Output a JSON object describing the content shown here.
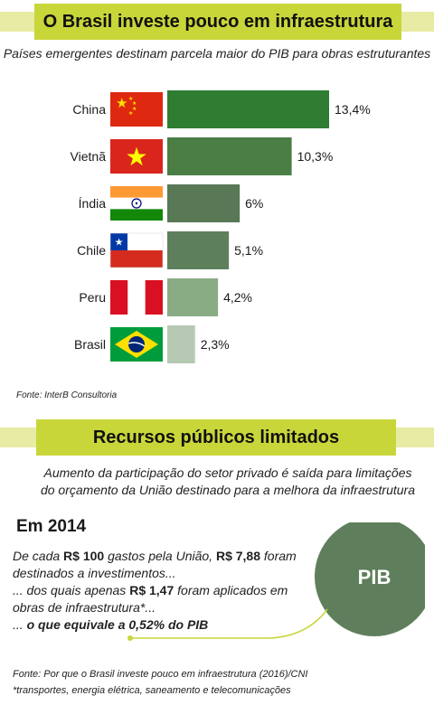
{
  "section1": {
    "title": "O Brasil investe pouco em infraestrutura",
    "subtitle": "Países emergentes destinam parcela maior do PIB para obras estruturantes",
    "source": "Fonte: InterB Consultoria"
  },
  "chart_data": {
    "type": "bar",
    "orientation": "horizontal",
    "categories": [
      "China",
      "Vietnã",
      "Índia",
      "Chile",
      "Peru",
      "Brasil"
    ],
    "values": [
      13.4,
      10.3,
      6,
      5.1,
      4.2,
      2.3
    ],
    "value_labels": [
      "13,4%",
      "10,3%",
      "6%",
      "5,1%",
      "4,2%",
      "2,3%"
    ],
    "flags": [
      "china-flag",
      "vietnam-flag",
      "india-flag",
      "chile-flag",
      "peru-flag",
      "brazil-flag"
    ],
    "colors": [
      "#2e7d32",
      "#4a7e45",
      "#587856",
      "#5e7f5b",
      "#8aac85",
      "#b6c9b3"
    ],
    "xlim": [
      0,
      13.4
    ],
    "grid": false,
    "legend": "none"
  },
  "section2": {
    "title": "Recursos públicos limitados",
    "subtitle_line1": "Aumento da participação do setor privado é saída para limitações",
    "subtitle_line2": "do orçamento da União destinado para a melhora da infraestrutura",
    "year": "Em 2014",
    "p1_a": "De cada ",
    "p1_b": "R$ 100",
    "p1_c": " gastos pela União, ",
    "p1_d": "R$ 7,88",
    "p1_e": " foram destinados a investimentos...",
    "p2_a": "... dos quais apenas ",
    "p2_b": "R$ 1,47",
    "p2_c": " foram aplicados em obras de infraestrutura*...",
    "p3_a": "... ",
    "p3_b": "o que equivale a 0,52% do PIB",
    "circle_label": "PIB",
    "circle_color": "#5f7f5c",
    "pointer_color": "#c8d63a",
    "source": "Fonte: Por que o Brasil investe pouco em infraestrutura (2016)/CNI",
    "footnote": "*transportes, energia elétrica, saneamento e telecomunicações"
  }
}
